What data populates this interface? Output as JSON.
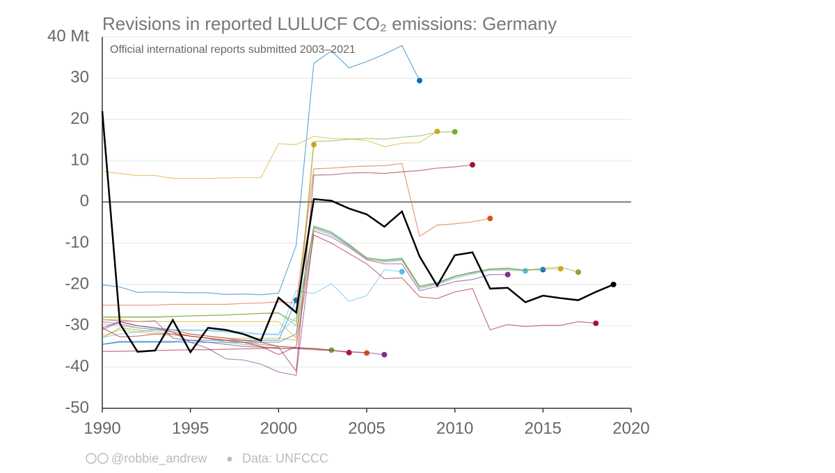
{
  "chart_data": {
    "type": "line",
    "title": "Revisions in reported LULUCF CO₂ emissions: Germany",
    "subtitle": "Official international reports submitted 2003–2021",
    "credit": "@robbie_andrew",
    "source": "Data: UNFCCC",
    "xlim": [
      1990,
      2020
    ],
    "ylim": [
      -50,
      40
    ],
    "xticks": [
      1990,
      1995,
      2000,
      2005,
      2010,
      2015,
      2020
    ],
    "yticks": [
      {
        "value": 40,
        "label": "40 Mt"
      },
      30,
      20,
      10,
      0,
      -10,
      -20,
      -30,
      -40,
      -50
    ],
    "grid": true,
    "x": [
      1990,
      1991,
      1992,
      1993,
      1994,
      1995,
      1996,
      1997,
      1998,
      1999,
      2000,
      2001,
      2002,
      2003,
      2004,
      2005,
      2006,
      2007,
      2008,
      2009,
      2010,
      2011,
      2012,
      2013,
      2014,
      2015,
      2016,
      2017,
      2018,
      2019
    ],
    "series": [
      {
        "color": "#0072bd",
        "values": [
          -34.5,
          -33.8,
          -33.8,
          -33.8,
          -33.8,
          -33.5,
          -33.5,
          -33.5,
          -33.5,
          -33.5,
          -33.5,
          -23.8,
          null,
          null,
          null,
          null,
          null,
          null,
          null,
          null,
          null,
          null,
          null,
          null,
          null,
          null,
          null,
          null,
          null,
          null
        ]
      },
      {
        "color": "#d6a81a",
        "values": [
          -32.5,
          -31,
          -31.5,
          -32,
          -32.5,
          -32,
          -32.5,
          -33,
          -33,
          -33,
          -33,
          -33.5,
          13.9,
          null,
          null,
          null,
          null,
          null,
          null,
          null,
          null,
          null,
          null,
          null,
          null,
          null,
          null,
          null,
          null,
          null
        ]
      },
      {
        "color": "#77ac30",
        "values": [
          -33,
          -30.5,
          -31,
          -31.5,
          -32,
          -32.5,
          -33,
          -34,
          -34.5,
          -35,
          -35.5,
          -35.5,
          -35.5,
          -35.9,
          null,
          null,
          null,
          null,
          null,
          null,
          null,
          null,
          null,
          null,
          null,
          null,
          null,
          null,
          null,
          null
        ]
      },
      {
        "color": "#a2142f",
        "values": [
          -30.5,
          -29,
          -30,
          -30.5,
          -31,
          -32,
          -32.5,
          -33,
          -33.5,
          -34,
          -35,
          -35.3,
          -35.5,
          -35.9,
          -36.5,
          null,
          null,
          null,
          null,
          null,
          null,
          null,
          null,
          null,
          null,
          null,
          null,
          null,
          null,
          null
        ]
      },
      {
        "color": "#d95319",
        "values": [
          -29,
          -29.5,
          -30.5,
          -31,
          -31.5,
          -32.5,
          -33,
          -33.5,
          -34,
          -34.5,
          -35,
          -35.3,
          -35.6,
          -36,
          -36.3,
          -36.6,
          null,
          null,
          null,
          null,
          null,
          null,
          null,
          null,
          null,
          null,
          null,
          null,
          null,
          null
        ]
      },
      {
        "color": "#7e2f8e",
        "values": [
          -28.5,
          -28.8,
          -29,
          -28.8,
          -33,
          -33.5,
          -34,
          -34.5,
          -35,
          -35.2,
          -35.5,
          -35.5,
          -35.8,
          -36,
          -36.3,
          -36.5,
          -37,
          null,
          null,
          null,
          null,
          null,
          null,
          null,
          null,
          null,
          null,
          null,
          null,
          null
        ]
      },
      {
        "color": "#4dbeee",
        "values": [
          -32.8,
          -32,
          -31.5,
          -31,
          -31,
          -31.2,
          -31.2,
          -31.5,
          -32,
          -32,
          -32.2,
          -21.5,
          -22.2,
          -19.8,
          -24.1,
          -22.7,
          -16.4,
          -16.9,
          null,
          null,
          null,
          null,
          null,
          null,
          null,
          null,
          null,
          null,
          null,
          null
        ]
      },
      {
        "color": "#0072bd",
        "values": [
          -20.1,
          -20.6,
          -21.9,
          -21.8,
          -21.9,
          -22,
          -22,
          -22.4,
          -22.3,
          -22.5,
          -22.1,
          -10.5,
          33.6,
          36.6,
          32.5,
          34,
          35.8,
          37.9,
          29.4,
          null,
          null,
          null,
          null,
          null,
          null,
          null,
          null,
          null,
          null,
          null
        ]
      },
      {
        "color": "#d6a81a",
        "values": [
          7.4,
          6.9,
          6.4,
          6.4,
          5.7,
          5.7,
          5.7,
          5.8,
          5.9,
          5.9,
          14.1,
          13.9,
          15.9,
          15.4,
          15.3,
          14.9,
          13.4,
          14.2,
          14.4,
          17.1,
          null,
          null,
          null,
          null,
          null,
          null,
          null,
          null,
          null,
          null
        ]
      },
      {
        "color": "#77ac30",
        "values": [
          -28,
          -28,
          -28,
          -28,
          -27.8,
          -27.6,
          -27.5,
          -27.4,
          -27.2,
          -27,
          -26.8,
          -30,
          14.6,
          14.8,
          15.2,
          15.4,
          15.2,
          15.7,
          16,
          16.9,
          17,
          null,
          null,
          null,
          null,
          null,
          null,
          null,
          null,
          null
        ]
      },
      {
        "color": "#a2142f",
        "values": [
          -36.2,
          -36.2,
          -36.1,
          -36,
          -35.9,
          -35.8,
          -35.8,
          -35.7,
          -35.6,
          -35.5,
          -35.2,
          -41,
          6.5,
          6.6,
          7,
          7.1,
          6.9,
          7.3,
          7.6,
          8.2,
          8.5,
          9,
          null,
          null,
          null,
          null,
          null,
          null,
          null,
          null
        ]
      },
      {
        "color": "#d95319",
        "values": [
          -25,
          -25,
          -25,
          -25,
          -24.8,
          -24.8,
          -24.8,
          -24.8,
          -24.6,
          -24.5,
          -24.2,
          -24.5,
          8,
          8.2,
          8.5,
          8.7,
          8.8,
          9.3,
          -8.3,
          -5.6,
          -5.3,
          -4.8,
          -4,
          null,
          null,
          null,
          null,
          null,
          null,
          null
        ]
      },
      {
        "color": "#7e2f8e",
        "values": [
          -31,
          -29,
          -30,
          -30.5,
          -31.5,
          -34,
          -35.5,
          -38,
          -38.3,
          -39.3,
          -41.2,
          -42,
          -7,
          -8.5,
          -11,
          -14,
          -15,
          -15,
          -21.5,
          -20.5,
          -19.3,
          -18.8,
          -17.6,
          -17.6,
          null,
          null,
          null,
          null,
          null,
          null
        ]
      },
      {
        "color": "#4dbeee",
        "values": [
          -29.5,
          -30,
          -30.5,
          -30.8,
          -31,
          -31,
          -31,
          -31.3,
          -31.5,
          -32,
          -32,
          -28,
          -6.5,
          -8,
          -10.5,
          -13.8,
          -14.5,
          -14,
          -21,
          -20,
          -18.5,
          -17.5,
          -16.5,
          -16.6,
          -16.7,
          null,
          null,
          null,
          null,
          null
        ]
      },
      {
        "color": "#0072bd",
        "values": [
          -34.5,
          -34,
          -34,
          -34,
          -34,
          -34,
          -34,
          -34,
          -34,
          -34,
          -34,
          -32,
          -6,
          -7.5,
          -10.5,
          -13.5,
          -14.2,
          -13.8,
          -20.5,
          -19.5,
          -18,
          -17,
          -16.3,
          -16.2,
          -16.5,
          -16.4,
          null,
          null,
          null,
          null
        ]
      },
      {
        "color": "#d6a81a",
        "values": [
          -28.5,
          -28.5,
          -29,
          -29,
          -29,
          -29,
          -29,
          -29,
          -29,
          -29,
          -29,
          -33,
          -6.2,
          -7.8,
          -10.8,
          -13.8,
          -14.5,
          -14.2,
          -20.7,
          -19.8,
          -18.2,
          -17.2,
          -16.4,
          -16.3,
          -16.6,
          -16.3,
          -16.2,
          null,
          null,
          null
        ]
      },
      {
        "color": "#77ac30",
        "values": [
          -27.8,
          -27.8,
          -27.8,
          -27.8,
          -27.7,
          -27.6,
          -27.5,
          -27.4,
          -27.2,
          -27,
          -27,
          -29,
          -5.8,
          -7.2,
          -10.2,
          -13.6,
          -14,
          -13.6,
          -20.4,
          -19.8,
          -18,
          -17.2,
          -16.2,
          -16,
          -16.5,
          -16.1,
          -15.8,
          -17,
          null,
          null
        ]
      },
      {
        "color": "#a2142f",
        "values": [
          -30.5,
          -32.7,
          -32.5,
          -32,
          -32,
          -32.5,
          -33,
          -33.5,
          -34,
          -35,
          -37,
          -35,
          -8,
          -10,
          -12.5,
          -15,
          -18.6,
          -18.4,
          -23,
          -23.4,
          -21.8,
          -21,
          -31,
          -29.7,
          -30.2,
          -29.9,
          -29.9,
          -29,
          -29.4,
          null
        ]
      },
      {
        "color": "#000000",
        "values": [
          22,
          -29.5,
          -36.3,
          -36,
          -28.6,
          -36.4,
          -30.5,
          -31,
          -32,
          -33.6,
          -23.2,
          -26.8,
          0.7,
          0.3,
          -1.6,
          -3,
          -6,
          -2.3,
          -13.2,
          -20.3,
          -12.9,
          -12.2,
          -21,
          -20.8,
          -24.3,
          -22.7,
          -23.3,
          -23.8,
          -21.8,
          -20
        ]
      }
    ]
  }
}
